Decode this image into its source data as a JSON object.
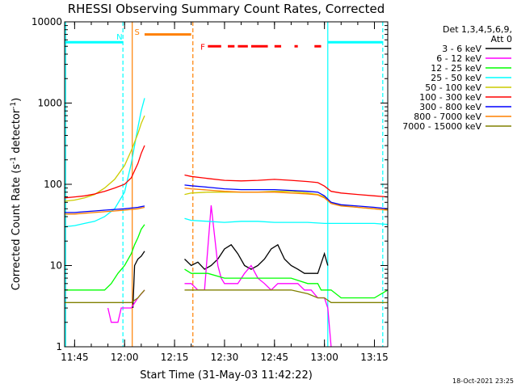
{
  "chart_data": {
    "type": "line",
    "title": "RHESSI Observing Summary Count Rates, Corrected",
    "xlabel": "Start Time (31-May-03 11:42:22)",
    "ylabel_main": "Corrected Count Rate (s",
    "ylabel_exp1": "-1",
    "ylabel_mid": " detector",
    "ylabel_exp2": "-1",
    "ylabel_end": ")",
    "yscale": "log",
    "ylim": [
      1,
      10000
    ],
    "xlim_min": [
      702,
      799
    ],
    "y_ticks": [
      {
        "value": 1,
        "label": "1"
      },
      {
        "value": 10,
        "label": "10"
      },
      {
        "value": 100,
        "label": "100"
      },
      {
        "value": 1000,
        "label": "1000"
      },
      {
        "value": 10000,
        "label": "10000"
      }
    ],
    "x_ticks": [
      {
        "min": 705,
        "label": "11:45"
      },
      {
        "min": 720,
        "label": "12:00"
      },
      {
        "min": 735,
        "label": "12:15"
      },
      {
        "min": 750,
        "label": "12:30"
      },
      {
        "min": 765,
        "label": "12:45"
      },
      {
        "min": 780,
        "label": "13:00"
      },
      {
        "min": 795,
        "label": "13:15"
      }
    ],
    "legend_header": [
      "Det 1,3,4,5,6,9,",
      "Att 0"
    ],
    "series": [
      {
        "name": "3 - 6 keV",
        "color": "#000000",
        "x": [
          722.5,
          723,
          724,
          725,
          726,
          738,
          740,
          742,
          744,
          746,
          748,
          750,
          752,
          754,
          756,
          758,
          760,
          762,
          764,
          766,
          768,
          770,
          772,
          774,
          776,
          778,
          780,
          781
        ],
        "y": [
          3,
          10,
          12,
          13,
          15,
          12,
          10,
          11,
          9,
          10,
          12,
          16,
          18,
          14,
          10,
          9,
          10,
          12,
          16,
          18,
          12,
          10,
          9,
          8,
          8,
          8,
          14,
          10
        ]
      },
      {
        "name": "6 - 12 keV",
        "color": "#ff00ff",
        "x": [
          715,
          716,
          717,
          718,
          719,
          720,
          722,
          724,
          726,
          738,
          740,
          742,
          744,
          746,
          748,
          749,
          750,
          752,
          754,
          756,
          758,
          760,
          762,
          764,
          766,
          768,
          770,
          772,
          774,
          776,
          778,
          780,
          781,
          782
        ],
        "y": [
          3,
          2,
          2,
          2,
          3,
          3,
          3,
          4,
          5,
          6,
          6,
          5,
          5,
          55,
          10,
          7,
          6,
          6,
          6,
          8,
          10,
          7,
          6,
          5,
          6,
          6,
          6,
          6,
          5,
          5,
          4,
          4,
          3,
          1
        ]
      },
      {
        "name": "12 - 25 keV",
        "color": "#00ff00",
        "x": [
          702,
          705,
          708,
          711,
          714,
          716,
          718,
          720,
          722,
          723,
          724,
          725,
          726,
          738,
          740,
          745,
          750,
          755,
          760,
          765,
          770,
          775,
          778,
          779,
          780,
          782,
          785,
          790,
          795,
          799
        ],
        "y": [
          5,
          5,
          5,
          5,
          5,
          6,
          8,
          10,
          14,
          18,
          22,
          28,
          32,
          9,
          8,
          8,
          7,
          7,
          7,
          7,
          7,
          6,
          6,
          5,
          5,
          5,
          4,
          4,
          4,
          5
        ]
      },
      {
        "name": "25 - 50 keV",
        "color": "#00ffff",
        "x": [
          702,
          705,
          708,
          711,
          714,
          717,
          720,
          722,
          724,
          725,
          726,
          738,
          740,
          745,
          750,
          755,
          760,
          765,
          770,
          775,
          780,
          785,
          790,
          795,
          799
        ],
        "y": [
          30,
          31,
          33,
          35,
          40,
          50,
          80,
          180,
          500,
          800,
          1150,
          38,
          36,
          35,
          34,
          35,
          35,
          34,
          34,
          34,
          33,
          33,
          33,
          33,
          32
        ]
      },
      {
        "name": "50 - 100 keV",
        "color": "#cccc00",
        "x": [
          702,
          705,
          708,
          711,
          714,
          717,
          720,
          722,
          724,
          725,
          726,
          738,
          740,
          745,
          750,
          755,
          760,
          765,
          770,
          775,
          778,
          780,
          782,
          785,
          790,
          795,
          799
        ],
        "y": [
          62,
          64,
          68,
          75,
          90,
          115,
          170,
          260,
          420,
          560,
          700,
          75,
          78,
          80,
          80,
          80,
          80,
          82,
          82,
          78,
          75,
          70,
          60,
          55,
          52,
          50,
          48
        ]
      },
      {
        "name": "100 - 300 keV",
        "color": "#ff0000",
        "x": [
          702,
          705,
          708,
          711,
          714,
          717,
          720,
          722,
          724,
          725,
          726,
          738,
          740,
          745,
          750,
          755,
          760,
          765,
          770,
          775,
          778,
          780,
          782,
          785,
          790,
          795,
          799
        ],
        "y": [
          68,
          70,
          72,
          76,
          82,
          90,
          100,
          120,
          180,
          240,
          300,
          130,
          125,
          118,
          112,
          110,
          112,
          115,
          112,
          108,
          105,
          95,
          82,
          78,
          75,
          72,
          70
        ]
      },
      {
        "name": "300 - 800 keV",
        "color": "#0000ff",
        "x": [
          702,
          705,
          708,
          711,
          714,
          717,
          720,
          722,
          724,
          725,
          726,
          738,
          740,
          745,
          750,
          755,
          760,
          765,
          770,
          775,
          778,
          780,
          782,
          785,
          790,
          795,
          799
        ],
        "y": [
          45,
          45,
          46,
          47,
          48,
          49,
          50,
          51,
          52,
          53,
          54,
          98,
          96,
          92,
          88,
          86,
          86,
          86,
          84,
          82,
          80,
          72,
          60,
          56,
          54,
          52,
          50
        ]
      },
      {
        "name": "800 - 7000 keV",
        "color": "#ff8000",
        "x": [
          702,
          705,
          708,
          711,
          714,
          717,
          720,
          722,
          724,
          725,
          726,
          738,
          740,
          745,
          750,
          755,
          760,
          765,
          770,
          775,
          778,
          780,
          782,
          785,
          790,
          795,
          799
        ],
        "y": [
          43,
          43,
          44,
          45,
          46,
          47,
          48,
          49,
          50,
          51,
          52,
          90,
          88,
          85,
          82,
          80,
          80,
          80,
          78,
          76,
          74,
          68,
          58,
          54,
          52,
          50,
          48
        ]
      },
      {
        "name": "7000 - 15000 keV",
        "color": "#808000",
        "x": [
          702,
          705,
          708,
          711,
          714,
          717,
          720,
          722,
          724,
          725,
          726,
          738,
          740,
          745,
          750,
          755,
          760,
          765,
          770,
          775,
          778,
          780,
          782,
          785,
          790,
          795,
          799
        ],
        "y": [
          3.5,
          3.5,
          3.5,
          3.5,
          3.5,
          3.5,
          3.5,
          3.5,
          4,
          4.5,
          5,
          5,
          5,
          5,
          5,
          5,
          5,
          5,
          5,
          4.5,
          4,
          4,
          3.5,
          3.5,
          3.5,
          3.5,
          3.5
        ]
      }
    ],
    "status_markers": [
      {
        "label": "N",
        "color": "#00ffff",
        "min": 719.5
      },
      {
        "label": "S",
        "color": "#ff8000",
        "min": 722
      }
    ],
    "flare_label": {
      "label": "F",
      "color": "#ff0000"
    },
    "saa_bar": {
      "color": "#ff8000",
      "from_min": 726,
      "to_min": 740,
      "y": 7000
    },
    "night_bars": [
      {
        "from_min": 702,
        "to_min": 719.5
      },
      {
        "from_min": 781,
        "to_min": 797.5
      }
    ],
    "flare_segments": [
      [
        745,
        749
      ],
      [
        751,
        753
      ],
      [
        754,
        757
      ],
      [
        758,
        763
      ],
      [
        765,
        767
      ],
      [
        771,
        772
      ],
      [
        777,
        779
      ]
    ],
    "vlines": [
      {
        "min": 702.3,
        "color": "#00ffff",
        "dash": false
      },
      {
        "min": 719.5,
        "color": "#00ffff",
        "dash": true
      },
      {
        "min": 722.3,
        "color": "#ff8000",
        "dash": false
      },
      {
        "min": 740.5,
        "color": "#ff8000",
        "dash": true
      },
      {
        "min": 781.0,
        "color": "#00ffff",
        "dash": false
      },
      {
        "min": 797.5,
        "color": "#00ffff",
        "dash": true
      }
    ],
    "timestamp": "18-Oct-2021 23:25"
  }
}
